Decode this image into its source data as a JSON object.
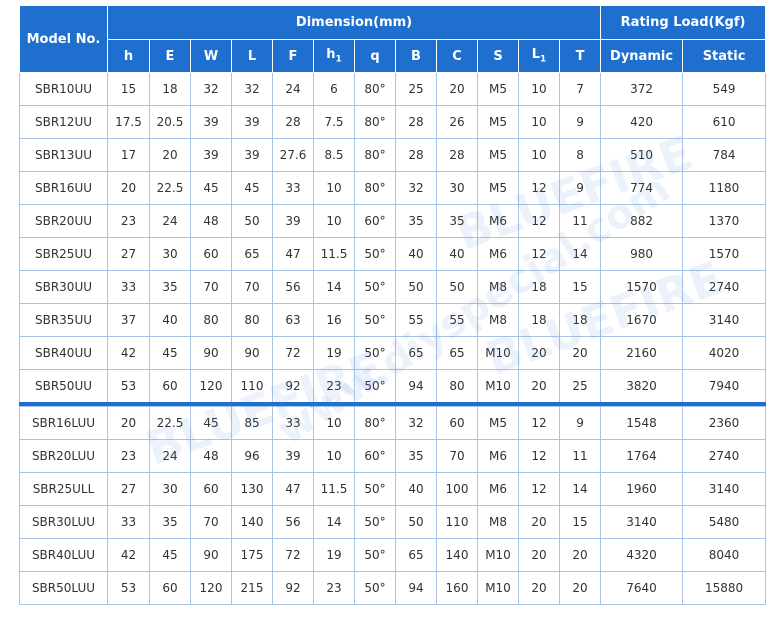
{
  "header": {
    "model": "Model No.",
    "dimension": "Dimension(mm)",
    "rating": "Rating Load(Kgf)",
    "columns": [
      "h",
      "E",
      "W",
      "L",
      "F",
      "h",
      "q",
      "B",
      "C",
      "S",
      "L",
      "T"
    ],
    "column_subscripts": [
      "",
      "",
      "",
      "",
      "",
      "1",
      "",
      "",
      "",
      "",
      "1",
      ""
    ],
    "dynamic": "Dynamic",
    "static": "Static"
  },
  "group1": [
    [
      "SBR10UU",
      "15",
      "18",
      "32",
      "32",
      "24",
      "6",
      "80°",
      "25",
      "20",
      "M5",
      "10",
      "7",
      "372",
      "549"
    ],
    [
      "SBR12UU",
      "17.5",
      "20.5",
      "39",
      "39",
      "28",
      "7.5",
      "80°",
      "28",
      "26",
      "M5",
      "10",
      "9",
      "420",
      "610"
    ],
    [
      "SBR13UU",
      "17",
      "20",
      "39",
      "39",
      "27.6",
      "8.5",
      "80°",
      "28",
      "28",
      "M5",
      "10",
      "8",
      "510",
      "784"
    ],
    [
      "SBR16UU",
      "20",
      "22.5",
      "45",
      "45",
      "33",
      "10",
      "80°",
      "32",
      "30",
      "M5",
      "12",
      "9",
      "774",
      "1180"
    ],
    [
      "SBR20UU",
      "23",
      "24",
      "48",
      "50",
      "39",
      "10",
      "60°",
      "35",
      "35",
      "M6",
      "12",
      "11",
      "882",
      "1370"
    ],
    [
      "SBR25UU",
      "27",
      "30",
      "60",
      "65",
      "47",
      "11.5",
      "50°",
      "40",
      "40",
      "M6",
      "12",
      "14",
      "980",
      "1570"
    ],
    [
      "SBR30UU",
      "33",
      "35",
      "70",
      "70",
      "56",
      "14",
      "50°",
      "50",
      "50",
      "M8",
      "18",
      "15",
      "1570",
      "2740"
    ],
    [
      "SBR35UU",
      "37",
      "40",
      "80",
      "80",
      "63",
      "16",
      "50°",
      "55",
      "55",
      "M8",
      "18",
      "18",
      "1670",
      "3140"
    ],
    [
      "SBR40UU",
      "42",
      "45",
      "90",
      "90",
      "72",
      "19",
      "50°",
      "65",
      "65",
      "M10",
      "20",
      "20",
      "2160",
      "4020"
    ],
    [
      "SBR50UU",
      "53",
      "60",
      "120",
      "110",
      "92",
      "23",
      "50°",
      "94",
      "80",
      "M10",
      "20",
      "25",
      "3820",
      "7940"
    ]
  ],
  "group2": [
    [
      "SBR16LUU",
      "20",
      "22.5",
      "45",
      "85",
      "33",
      "10",
      "80°",
      "32",
      "60",
      "M5",
      "12",
      "9",
      "1548",
      "2360"
    ],
    [
      "SBR20LUU",
      "23",
      "24",
      "48",
      "96",
      "39",
      "10",
      "60°",
      "35",
      "70",
      "M6",
      "12",
      "11",
      "1764",
      "2740"
    ],
    [
      "SBR25ULL",
      "27",
      "30",
      "60",
      "130",
      "47",
      "11.5",
      "50°",
      "40",
      "100",
      "M6",
      "12",
      "14",
      "1960",
      "3140"
    ],
    [
      "SBR30LUU",
      "33",
      "35",
      "70",
      "140",
      "56",
      "14",
      "50°",
      "50",
      "110",
      "M8",
      "20",
      "15",
      "3140",
      "5480"
    ],
    [
      "SBR40LUU",
      "42",
      "45",
      "90",
      "175",
      "72",
      "19",
      "50°",
      "65",
      "140",
      "M10",
      "20",
      "20",
      "4320",
      "8040"
    ],
    [
      "SBR50LUU",
      "53",
      "60",
      "120",
      "215",
      "92",
      "23",
      "50°",
      "94",
      "160",
      "M10",
      "20",
      "20",
      "7640",
      "15880"
    ]
  ],
  "watermarks": [
    "BLUEFIRE",
    "www.diyspecial.com",
    "BLUEFIRE",
    "BLUEFIRE"
  ],
  "colors": {
    "header_bg": "#1f6fce",
    "grid": "#a9c3e6",
    "text": "#333333"
  }
}
